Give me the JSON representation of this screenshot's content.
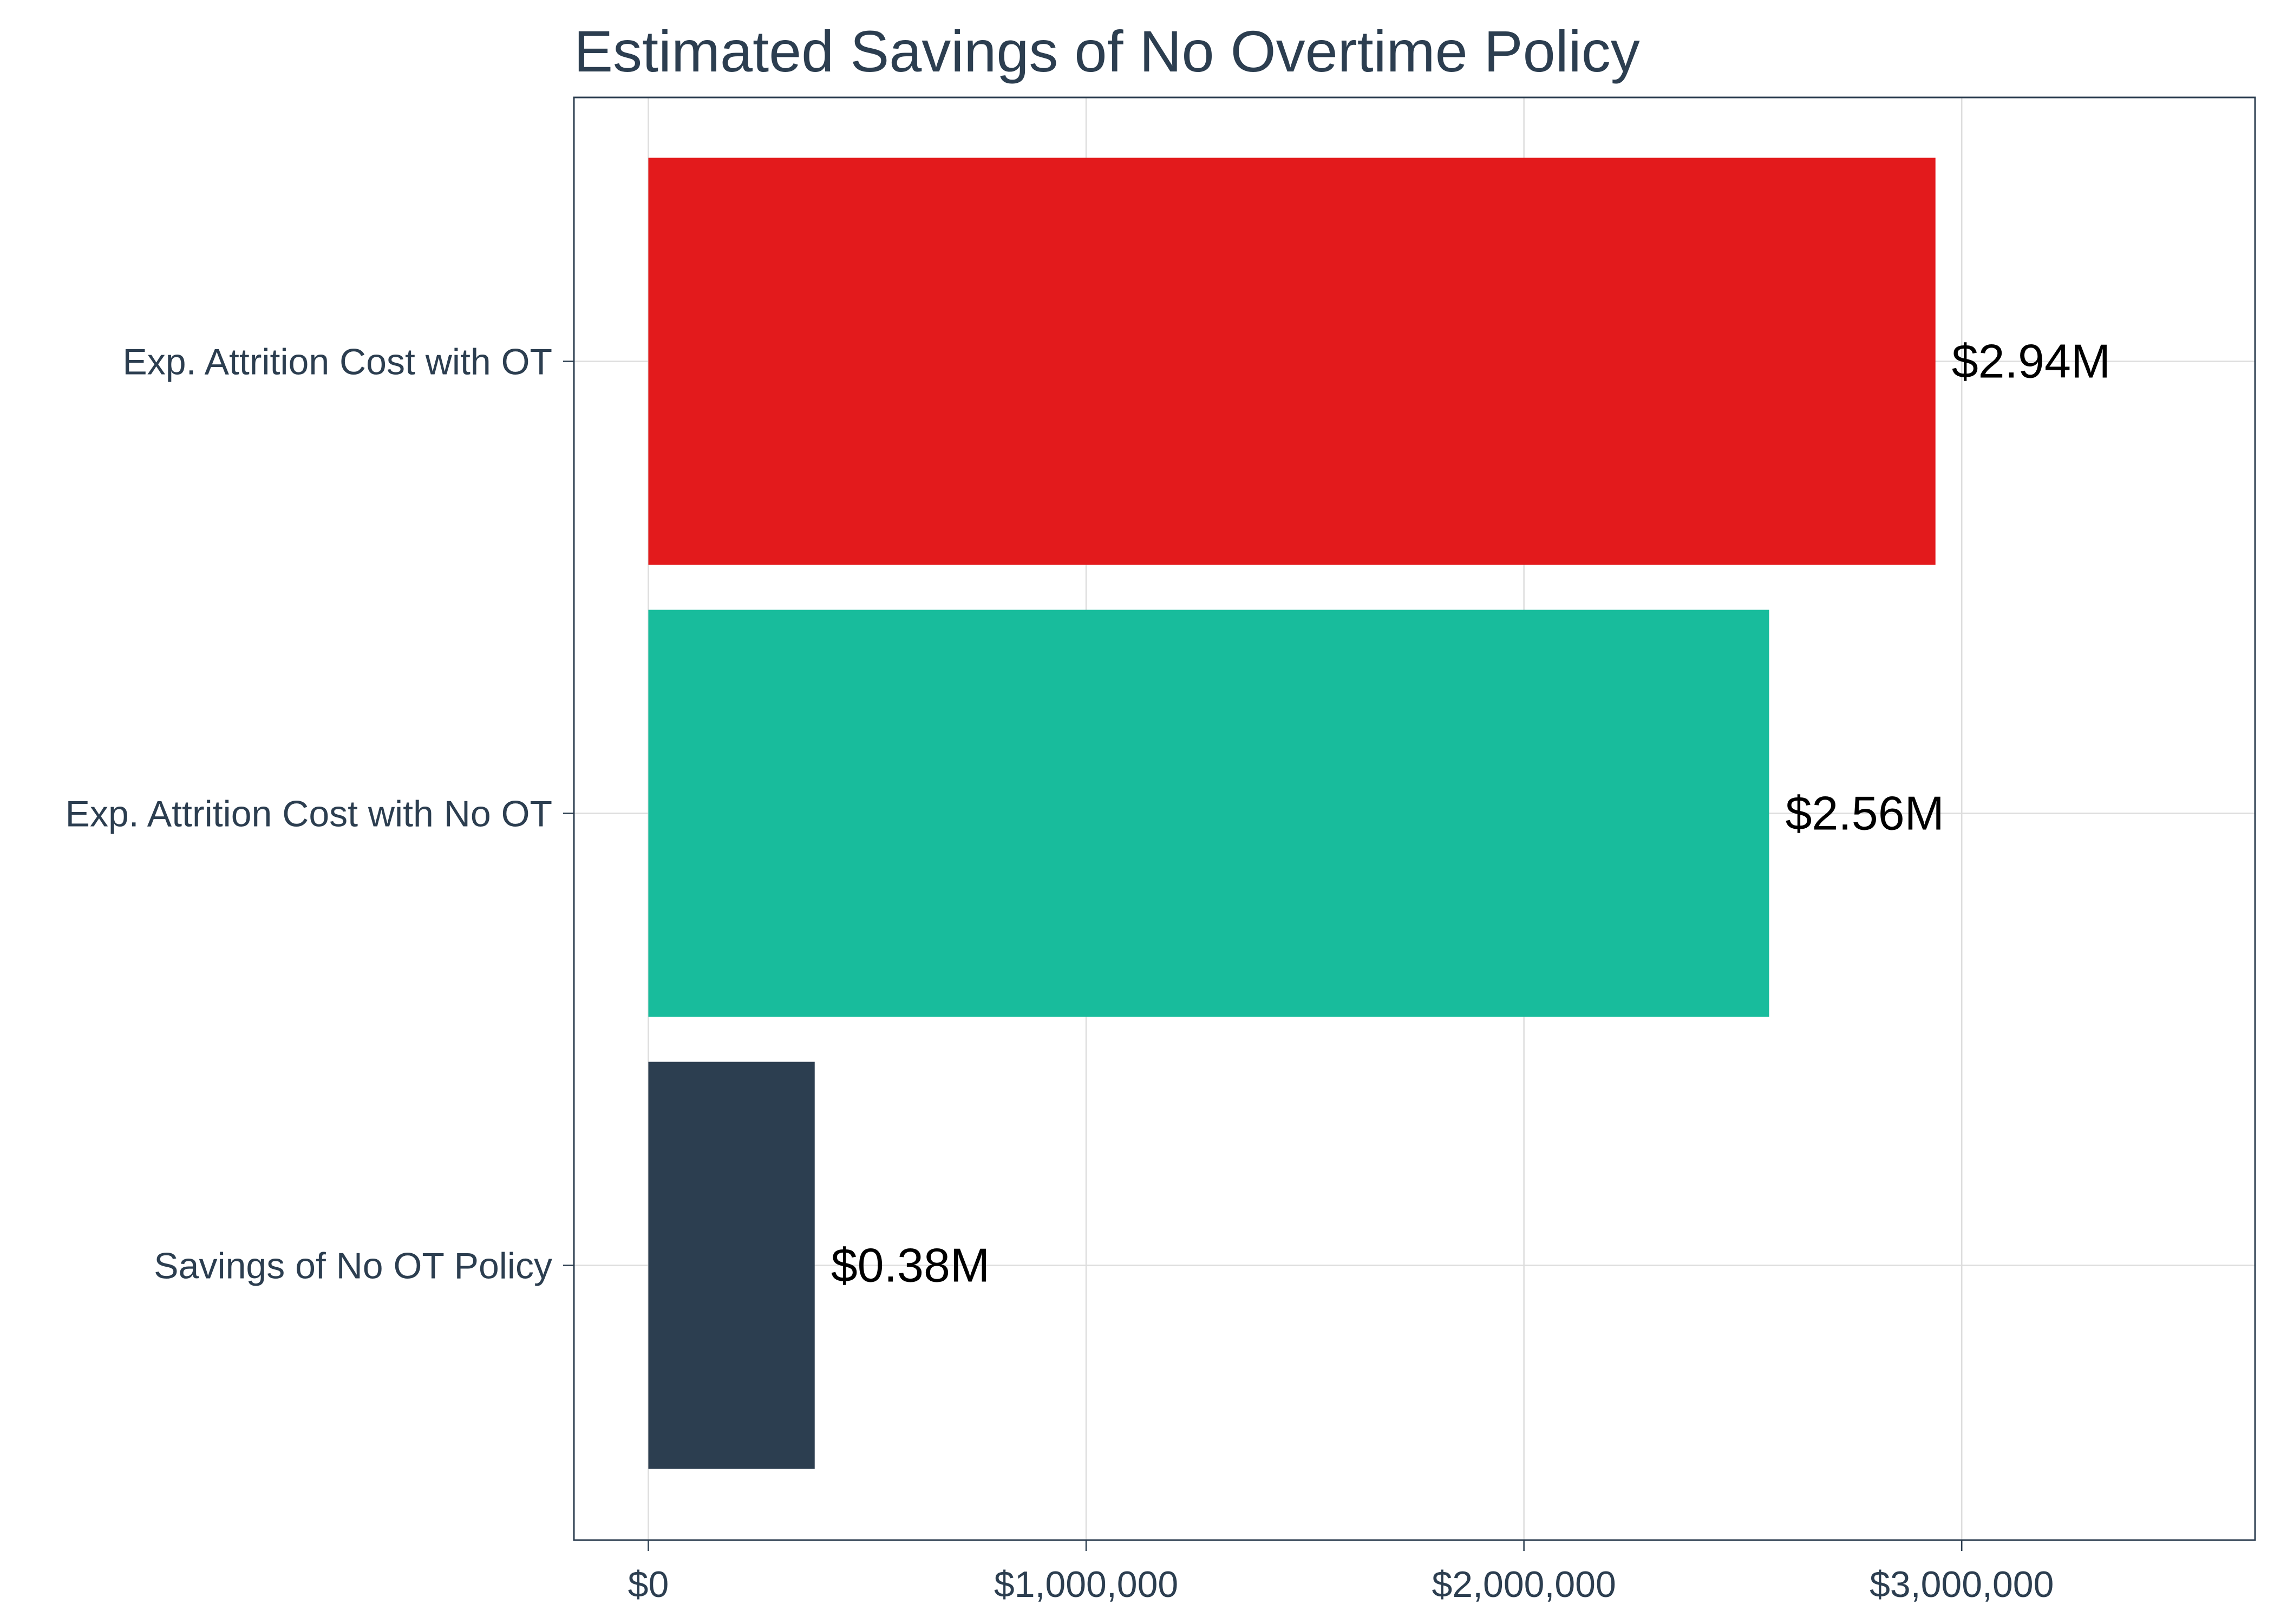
{
  "chart_data": {
    "type": "bar",
    "orientation": "horizontal",
    "title": "Estimated Savings of No Overtime Policy",
    "xlabel": "",
    "ylabel": "",
    "categories": [
      "Exp. Attrition Cost with OT",
      "Exp. Attrition Cost with No OT",
      "Savings of No OT Policy"
    ],
    "values": [
      2940000,
      2560000,
      380000
    ],
    "data_labels": [
      "$2.94M",
      "$2.56M",
      "$0.38M"
    ],
    "colors": [
      "#e31a1c",
      "#18bc9c",
      "#2c3e50"
    ],
    "x_ticks": [
      0,
      1000000,
      2000000,
      3000000
    ],
    "x_tick_labels": [
      "$0",
      "$1,000,000",
      "$2,000,000",
      "$3,000,000"
    ],
    "xlim": [
      -170000,
      3670000
    ],
    "grid": true,
    "legend": "none"
  }
}
